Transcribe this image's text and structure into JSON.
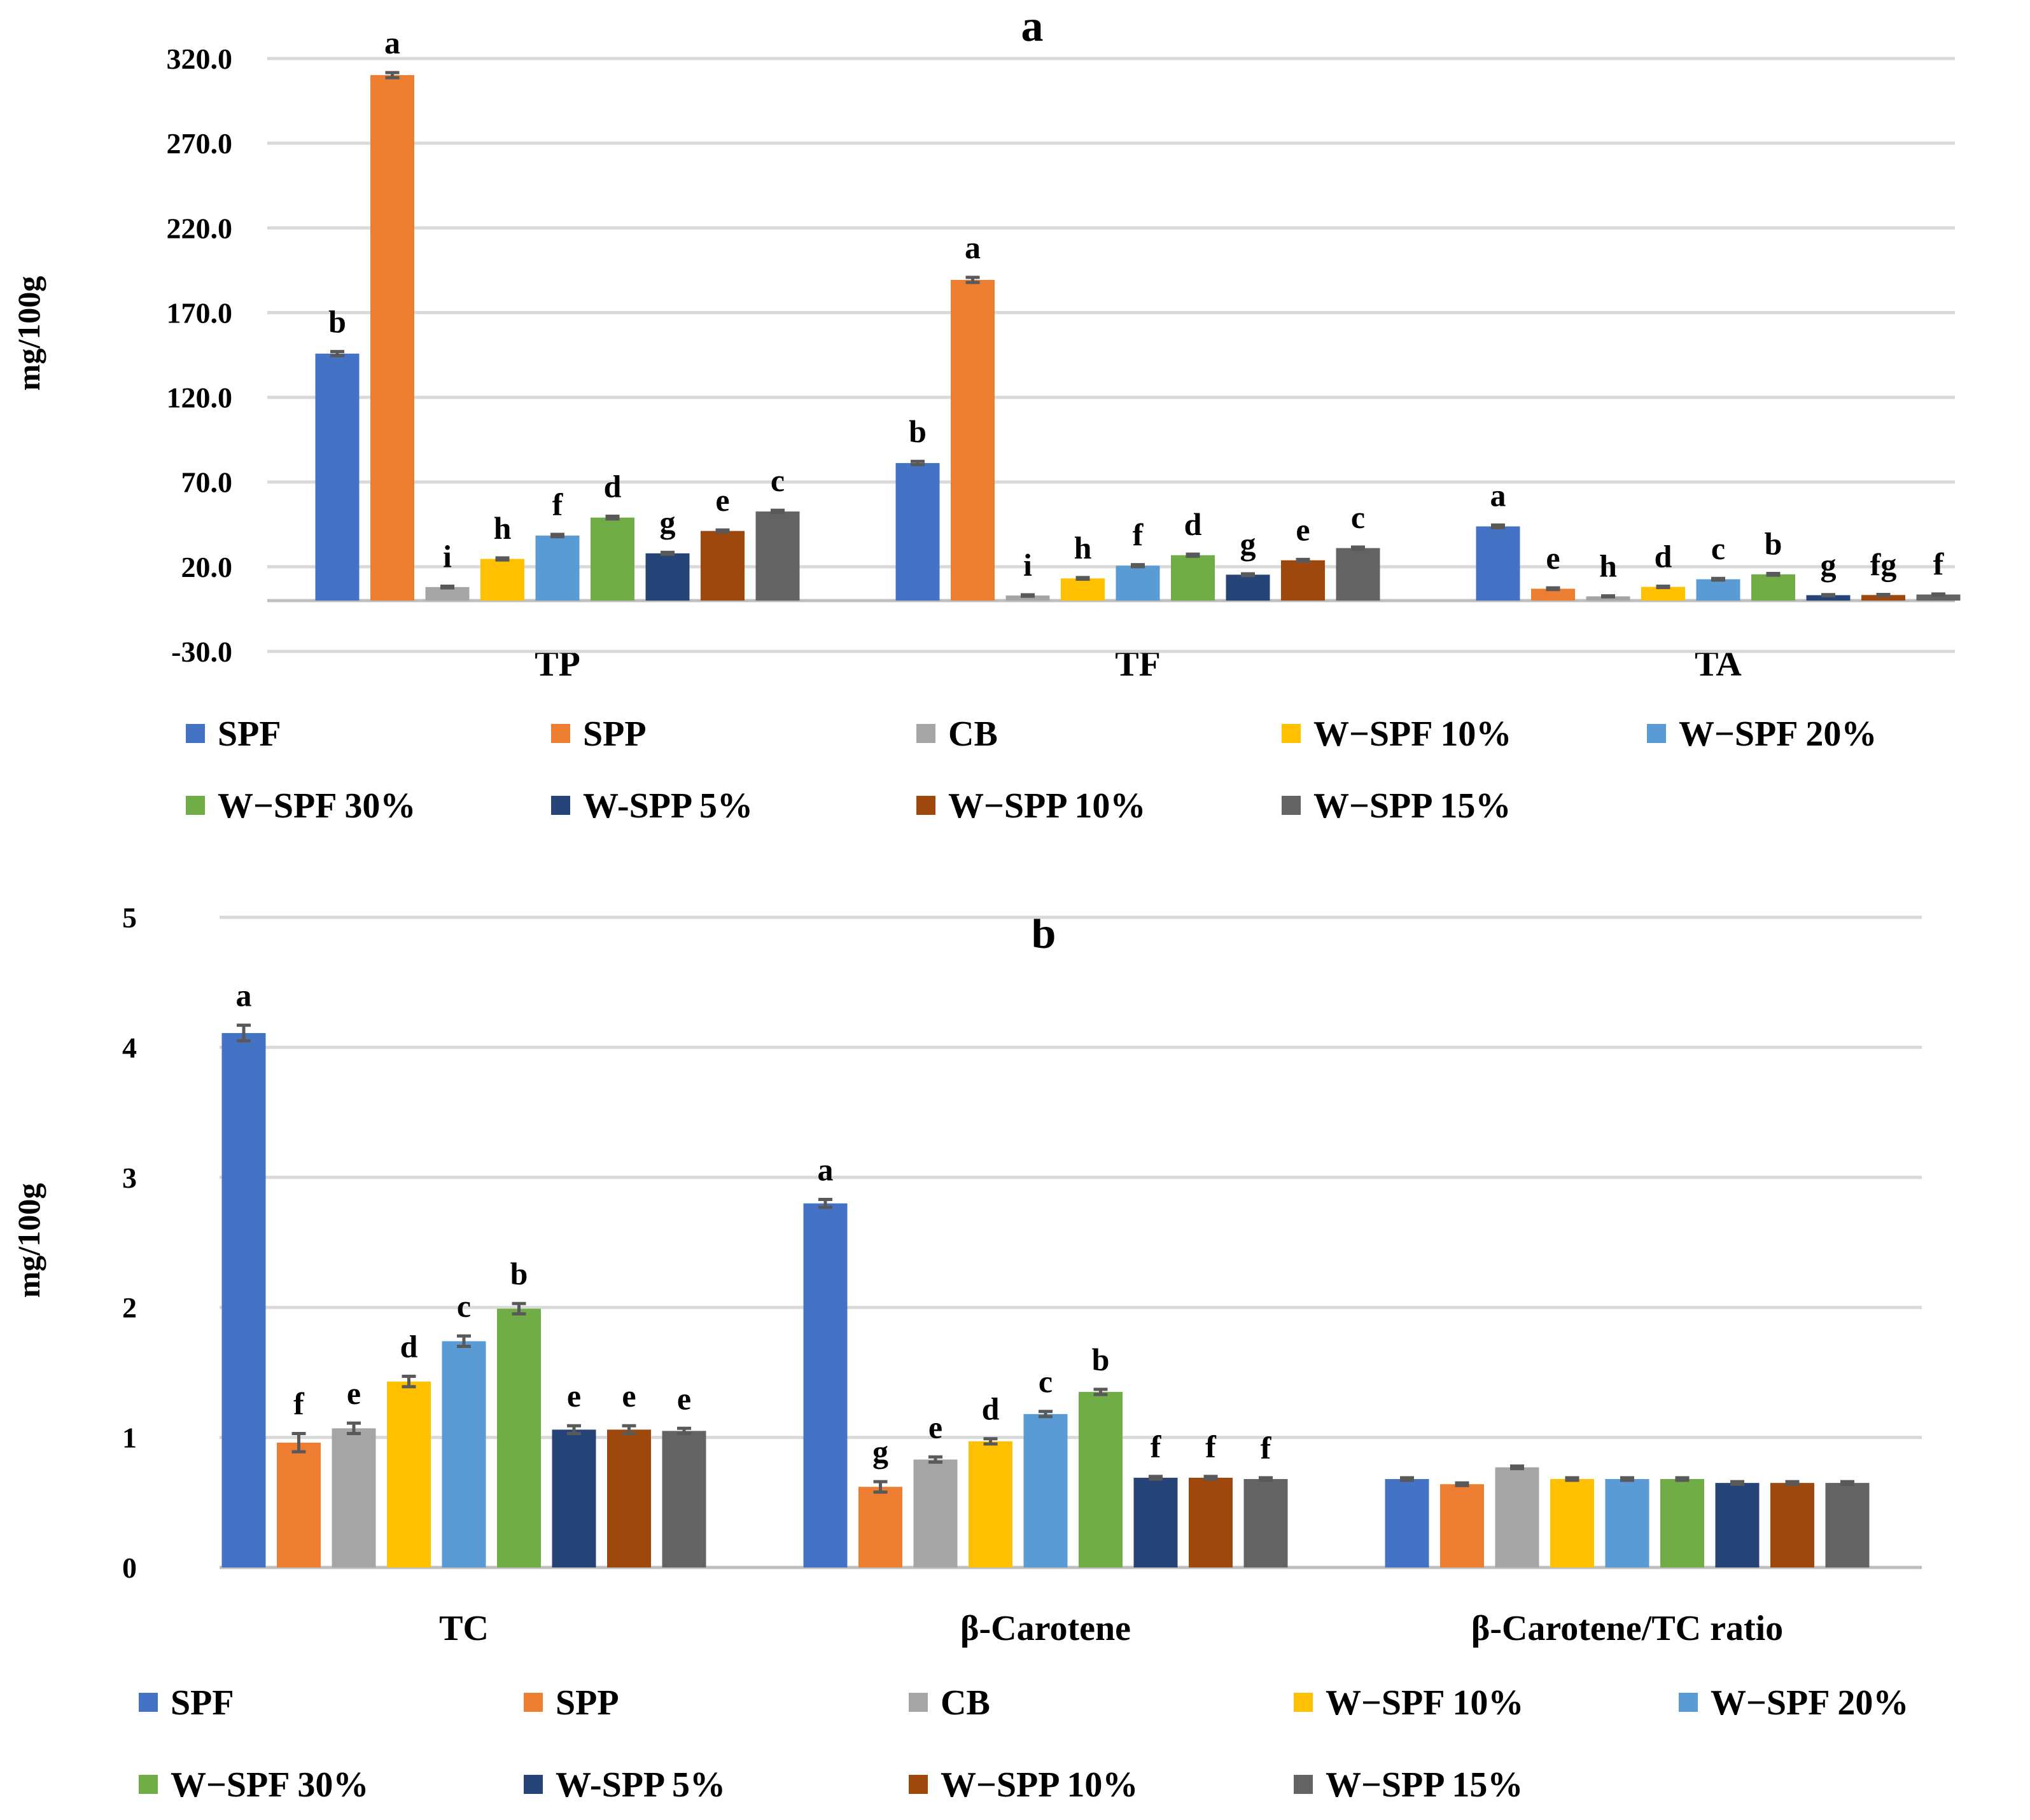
{
  "legend_colors": {
    "SPF": "#4472c4",
    "SPP": "#ed7d31",
    "CB": "#a5a5a5",
    "W−SPF 10%": "#ffc000",
    "W−SPF 20%": "#5b9bd5",
    "W−SPF 30%": "#70ad47",
    "W-SPP 5%": "#264478",
    "W−SPP 10%": "#9e480e",
    "W−SPP 15%": "#636363"
  },
  "chart_data": [
    {
      "type": "bar",
      "title": "a",
      "ylabel": "mg/100g",
      "xlabel": "",
      "ylim": [
        -30,
        320
      ],
      "yticks": [
        "320.0",
        "270.0",
        "220.0",
        "170.0",
        "120.0",
        "70.0",
        "20.0",
        "-30.0"
      ],
      "ytick_values": [
        320,
        270,
        220,
        170,
        120,
        70,
        20,
        -30
      ],
      "categories": [
        "TP",
        "TF",
        "TA"
      ],
      "series": [
        {
          "name": "SPF",
          "values": [
            145.8,
            81.2,
            43.8
          ],
          "errors": [
            1.2,
            1.0,
            0.8
          ],
          "letters": [
            "b",
            "b",
            "a"
          ]
        },
        {
          "name": "SPP",
          "values": [
            310.2,
            189.3,
            7.0
          ],
          "errors": [
            1.5,
            1.5,
            0.5
          ],
          "letters": [
            "a",
            "a",
            "e"
          ]
        },
        {
          "name": "CB",
          "values": [
            8.0,
            3.0,
            2.5
          ],
          "errors": [
            0.5,
            0.4,
            0.3
          ],
          "letters": [
            "i",
            "i",
            "h"
          ]
        },
        {
          "name": "W−SPF 10%",
          "values": [
            24.6,
            13.1,
            8.1
          ],
          "errors": [
            0.6,
            0.5,
            0.4
          ],
          "letters": [
            "h",
            "h",
            "d"
          ]
        },
        {
          "name": "W−SPF 20%",
          "values": [
            38.4,
            20.6,
            12.6
          ],
          "errors": [
            0.7,
            0.6,
            0.5
          ],
          "letters": [
            "f",
            "f",
            "c"
          ]
        },
        {
          "name": "W−SPF 30%",
          "values": [
            49.0,
            26.8,
            15.5
          ],
          "errors": [
            0.8,
            0.6,
            0.5
          ],
          "letters": [
            "d",
            "d",
            "b"
          ]
        },
        {
          "name": "W-SPP 5%",
          "values": [
            27.9,
            15.3,
            3.2
          ],
          "errors": [
            0.6,
            0.5,
            0.3
          ],
          "letters": [
            "g",
            "g",
            "g"
          ]
        },
        {
          "name": "W−SPP 10%",
          "values": [
            41.1,
            23.8,
            3.3
          ],
          "errors": [
            0.6,
            0.5,
            0.3
          ],
          "letters": [
            "e",
            "e",
            "fg"
          ]
        },
        {
          "name": "W−SPP 15%",
          "values": [
            52.6,
            31.0,
            3.6
          ],
          "errors": [
            0.7,
            0.6,
            0.3
          ],
          "letters": [
            "c",
            "c",
            "f"
          ]
        }
      ]
    },
    {
      "type": "bar",
      "title": "b",
      "ylabel": "mg/100g",
      "xlabel": "",
      "ylim": [
        0,
        5
      ],
      "yticks": [
        "5",
        "4",
        "3",
        "2",
        "1",
        "0"
      ],
      "ytick_values": [
        5,
        4,
        3,
        2,
        1,
        0
      ],
      "categories": [
        "TC",
        "β-Carotene",
        "β-Carotene/TC ratio"
      ],
      "series": [
        {
          "name": "SPF",
          "values": [
            4.11,
            2.8,
            0.68
          ],
          "errors": [
            0.06,
            0.03,
            0.01
          ],
          "letters": [
            "a",
            "a",
            ""
          ]
        },
        {
          "name": "SPP",
          "values": [
            0.96,
            0.62,
            0.64
          ],
          "errors": [
            0.07,
            0.04,
            0.01
          ],
          "letters": [
            "f",
            "g",
            ""
          ]
        },
        {
          "name": "CB",
          "values": [
            1.07,
            0.83,
            0.77
          ],
          "errors": [
            0.04,
            0.02,
            0.01
          ],
          "letters": [
            "e",
            "e",
            ""
          ]
        },
        {
          "name": "W−SPF 10%",
          "values": [
            1.43,
            0.97,
            0.68
          ],
          "errors": [
            0.04,
            0.02,
            0.01
          ],
          "letters": [
            "d",
            "d",
            ""
          ]
        },
        {
          "name": "W−SPF 20%",
          "values": [
            1.74,
            1.18,
            0.68
          ],
          "errors": [
            0.04,
            0.02,
            0.01
          ],
          "letters": [
            "c",
            "c",
            ""
          ]
        },
        {
          "name": "W−SPF 30%",
          "values": [
            1.99,
            1.35,
            0.68
          ],
          "errors": [
            0.04,
            0.02,
            0.01
          ],
          "letters": [
            "b",
            "b",
            ""
          ]
        },
        {
          "name": "W-SPP 5%",
          "values": [
            1.06,
            0.69,
            0.65
          ],
          "errors": [
            0.03,
            0.01,
            0.01
          ],
          "letters": [
            "e",
            "f",
            ""
          ]
        },
        {
          "name": "W−SPP 10%",
          "values": [
            1.06,
            0.69,
            0.65
          ],
          "errors": [
            0.03,
            0.01,
            0.01
          ],
          "letters": [
            "e",
            "f",
            ""
          ]
        },
        {
          "name": "W−SPP 15%",
          "values": [
            1.05,
            0.68,
            0.65
          ],
          "errors": [
            0.02,
            0.01,
            0.01
          ],
          "letters": [
            "e",
            "f",
            ""
          ]
        }
      ]
    }
  ]
}
